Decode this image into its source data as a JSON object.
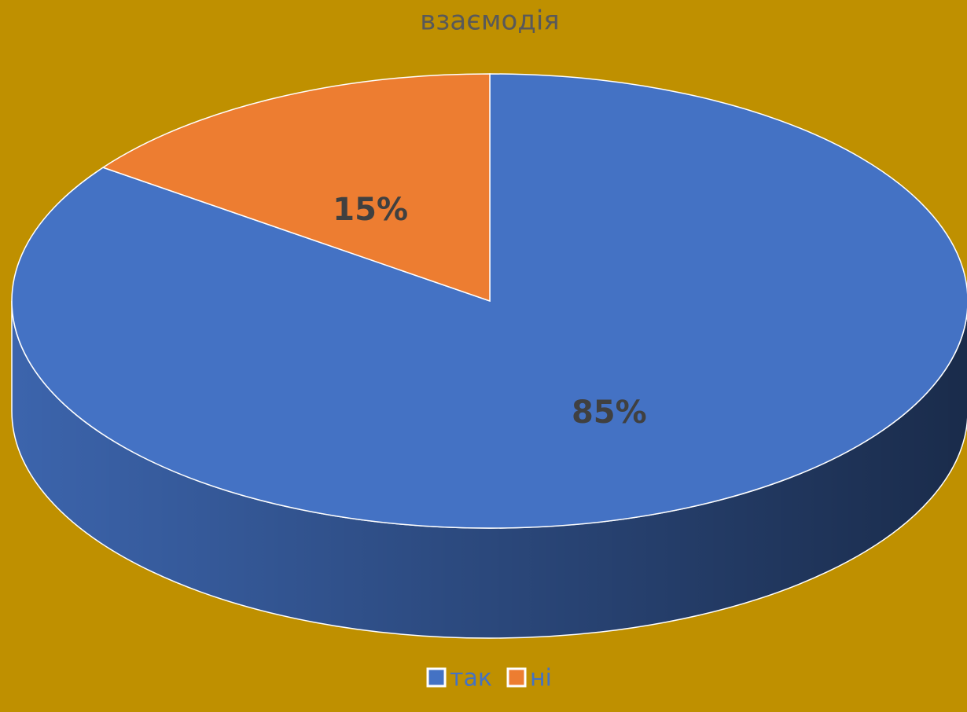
{
  "chart_data": {
    "type": "pie",
    "title": "взаємодія",
    "categories": [
      "так",
      "ні"
    ],
    "values": [
      85,
      15
    ],
    "value_labels": [
      "85%",
      "15%"
    ],
    "colors": [
      "#4472c4",
      "#ed7d31"
    ],
    "legend": "bottom"
  }
}
